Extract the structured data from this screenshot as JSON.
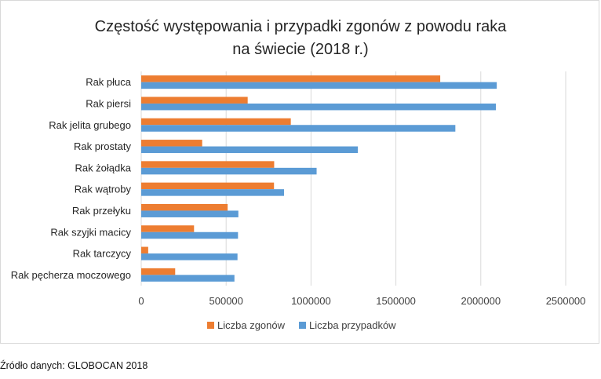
{
  "chart_data": {
    "type": "bar",
    "orientation": "horizontal",
    "title_lines": [
      "Częstość występowania i przypadki zgonów z powodu raka",
      "na świecie (2018 r.)"
    ],
    "categories": [
      "Rak płuca",
      "Rak piersi",
      "Rak jelita grubego",
      "Rak prostaty",
      "Rak żołądka",
      "Rak wątroby",
      "Rak przełyku",
      "Rak szyjki macicy",
      "Rak tarczycy",
      "Rak pęcherza moczowego"
    ],
    "series": [
      {
        "name": "Liczba zgonów",
        "color": "#ED7D31",
        "values": [
          1761000,
          627000,
          881000,
          359000,
          783000,
          782000,
          509000,
          311000,
          41000,
          200000
        ]
      },
      {
        "name": "Liczba przypadków",
        "color": "#5B9BD5",
        "values": [
          2094000,
          2089000,
          1850000,
          1276000,
          1033000,
          841000,
          572000,
          570000,
          567000,
          549000
        ]
      }
    ],
    "xlim": [
      0,
      2500000
    ],
    "xticks": [
      0,
      500000,
      1000000,
      1500000,
      2000000,
      2500000
    ],
    "xtick_labels": [
      "0",
      "500000",
      "1000000",
      "1500000",
      "2000000",
      "2500000"
    ],
    "grid": true,
    "legend_position": "bottom"
  },
  "source_note": "Źródło danych: GLOBOCAN 2018"
}
